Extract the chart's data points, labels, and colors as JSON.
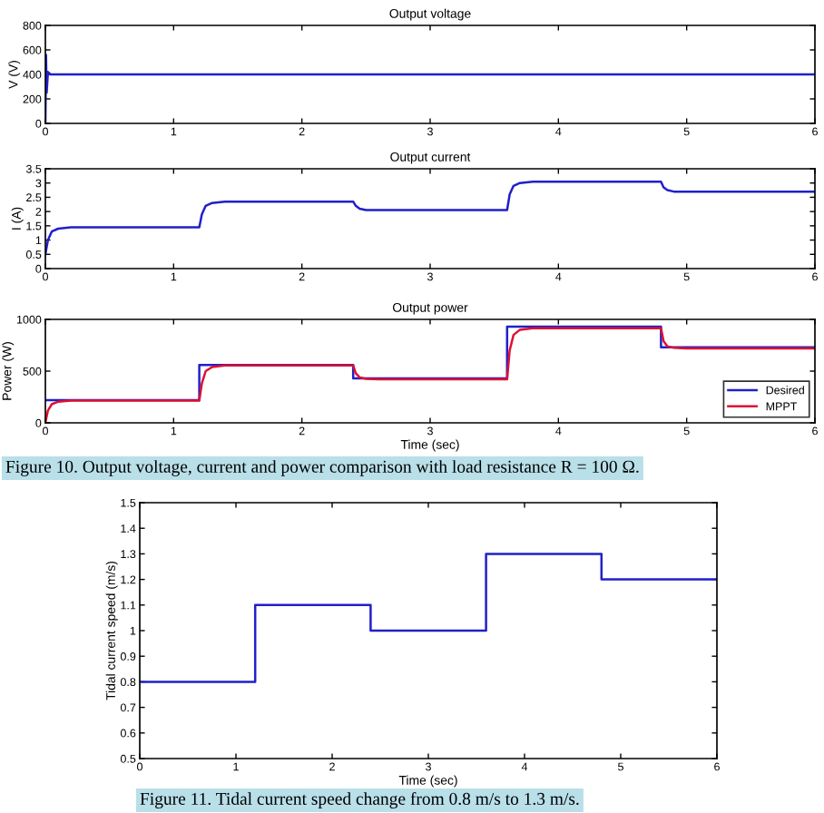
{
  "chart_data": [
    {
      "type": "line",
      "title": "Output voltage",
      "ylabel": "V (V)",
      "xlim": [
        0,
        6
      ],
      "xticks": [
        0,
        1,
        2,
        3,
        4,
        5,
        6
      ],
      "ylim": [
        0,
        800
      ],
      "yticks": [
        0,
        200,
        400,
        600,
        800
      ],
      "grid": false,
      "legend": false,
      "series": [
        {
          "color": "#2020c8",
          "x": [
            0,
            0.005,
            0.01,
            0.02,
            0.04,
            6
          ],
          "values": [
            0,
            560,
            250,
            420,
            400,
            400
          ]
        }
      ]
    },
    {
      "type": "line",
      "title": "Output current",
      "ylabel": "I (A)",
      "xlim": [
        0,
        6
      ],
      "xticks": [
        0,
        1,
        2,
        3,
        4,
        5,
        6
      ],
      "ylim": [
        0,
        3.5
      ],
      "yticks": [
        0,
        0.5,
        1,
        1.5,
        2,
        2.5,
        3,
        3.5
      ],
      "grid": false,
      "legend": false,
      "series": [
        {
          "color": "#2020c8",
          "x": [
            0,
            0.02,
            0.05,
            0.1,
            0.2,
            1.2,
            1.22,
            1.25,
            1.3,
            1.4,
            2.4,
            2.42,
            2.45,
            2.5,
            2.6,
            3.6,
            3.62,
            3.65,
            3.7,
            3.8,
            4.8,
            4.82,
            4.85,
            4.9,
            5.0,
            6
          ],
          "values": [
            0.5,
            1.0,
            1.3,
            1.4,
            1.45,
            1.45,
            1.9,
            2.2,
            2.3,
            2.35,
            2.35,
            2.2,
            2.1,
            2.05,
            2.05,
            2.05,
            2.6,
            2.9,
            3.0,
            3.05,
            3.05,
            2.85,
            2.75,
            2.7,
            2.7,
            2.7
          ]
        }
      ]
    },
    {
      "type": "line",
      "title": "Output power",
      "xlabel": "Time (sec)",
      "ylabel": "Power (W)",
      "xlim": [
        0,
        6
      ],
      "xticks": [
        0,
        1,
        2,
        3,
        4,
        5,
        6
      ],
      "ylim": [
        0,
        1000
      ],
      "yticks": [
        0,
        500,
        1000
      ],
      "grid": false,
      "legend": "bottom right",
      "annotations": [
        "Figure 10. Output voltage, current and power comparison with load resistance R = 100 Ω."
      ],
      "series": [
        {
          "name": "Desired",
          "type": "step",
          "color": "#2020c8",
          "x": [
            0,
            1.2,
            2.4,
            3.6,
            4.8,
            6
          ],
          "values": [
            220,
            560,
            430,
            930,
            730,
            730
          ]
        },
        {
          "name": "MPPT",
          "color": "#dd1133",
          "x": [
            0,
            0.02,
            0.05,
            0.1,
            0.2,
            1.2,
            1.22,
            1.25,
            1.3,
            1.4,
            2.4,
            2.42,
            2.45,
            2.5,
            2.6,
            3.6,
            3.62,
            3.65,
            3.7,
            3.8,
            4.8,
            4.82,
            4.85,
            4.9,
            5.0,
            6
          ],
          "values": [
            0,
            120,
            180,
            205,
            215,
            215,
            380,
            500,
            540,
            555,
            555,
            480,
            440,
            425,
            420,
            420,
            700,
            850,
            900,
            915,
            915,
            790,
            740,
            725,
            720,
            720
          ]
        }
      ]
    },
    {
      "type": "step",
      "xlabel": "Time (sec)",
      "ylabel": "Tidal current speed (m/s)",
      "xlim": [
        0,
        6
      ],
      "xticks": [
        0,
        1,
        2,
        3,
        4,
        5,
        6
      ],
      "ylim": [
        0.5,
        1.5
      ],
      "yticks": [
        0.5,
        0.6,
        0.7,
        0.8,
        0.9,
        1,
        1.1,
        1.2,
        1.3,
        1.4,
        1.5
      ],
      "grid": false,
      "legend": false,
      "annotations": [
        "Figure 11. Tidal current speed change from 0.8 m/s to 1.3 m/s."
      ],
      "series": [
        {
          "color": "#2020c8",
          "x": [
            0,
            1.2,
            2.4,
            3.6,
            4.8,
            6
          ],
          "values": [
            0.8,
            1.1,
            1.0,
            1.3,
            1.2,
            1.2
          ]
        }
      ]
    }
  ]
}
